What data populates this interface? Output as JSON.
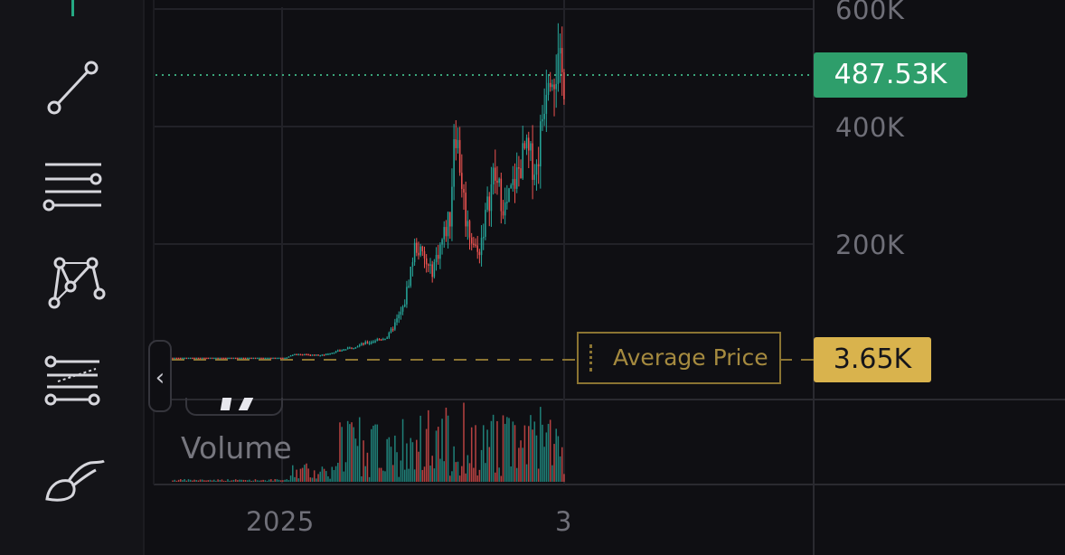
{
  "toolbar": {
    "tools": [
      {
        "name": "trend-line-tool"
      },
      {
        "name": "horizontal-lines-tool"
      },
      {
        "name": "pattern-tool"
      },
      {
        "name": "fib-retracement-tool"
      },
      {
        "name": "brush-tool"
      }
    ]
  },
  "axis": {
    "y_labels": [
      "600K",
      "400K",
      "200K"
    ],
    "x_labels": [
      "2025",
      "3"
    ]
  },
  "current_price_label": "487.53K",
  "average_price": {
    "label": "Average Price",
    "value_label": "3.65K"
  },
  "volume_label": "Volume",
  "colors": {
    "up": "#26a69a",
    "down": "#ef5350",
    "price_tag": "#2e9e6b",
    "avg_tag": "#d9b34d",
    "grid": "#222228"
  },
  "chart_data": {
    "type": "candlestick",
    "y_ticks": [
      600000,
      400000,
      200000
    ],
    "x_ticks": [
      "2025",
      "3"
    ],
    "current_price": 487530,
    "average_price": 3650,
    "series_shape": [
      {
        "t": 0.0,
        "price": 3650
      },
      {
        "t": 0.29,
        "price": 3650
      },
      {
        "t": 0.31,
        "price": 10000
      },
      {
        "t": 0.38,
        "price": 8000
      },
      {
        "t": 0.45,
        "price": 20000
      },
      {
        "t": 0.55,
        "price": 40000
      },
      {
        "t": 0.59,
        "price": 90000
      },
      {
        "t": 0.62,
        "price": 200000
      },
      {
        "t": 0.66,
        "price": 150000
      },
      {
        "t": 0.71,
        "price": 250000
      },
      {
        "t": 0.72,
        "price": 420000
      },
      {
        "t": 0.75,
        "price": 240000
      },
      {
        "t": 0.78,
        "price": 180000
      },
      {
        "t": 0.82,
        "price": 320000
      },
      {
        "t": 0.85,
        "price": 260000
      },
      {
        "t": 0.9,
        "price": 360000
      },
      {
        "t": 0.93,
        "price": 330000
      },
      {
        "t": 0.96,
        "price": 520000
      },
      {
        "t": 1.0,
        "price": 487530
      }
    ]
  }
}
